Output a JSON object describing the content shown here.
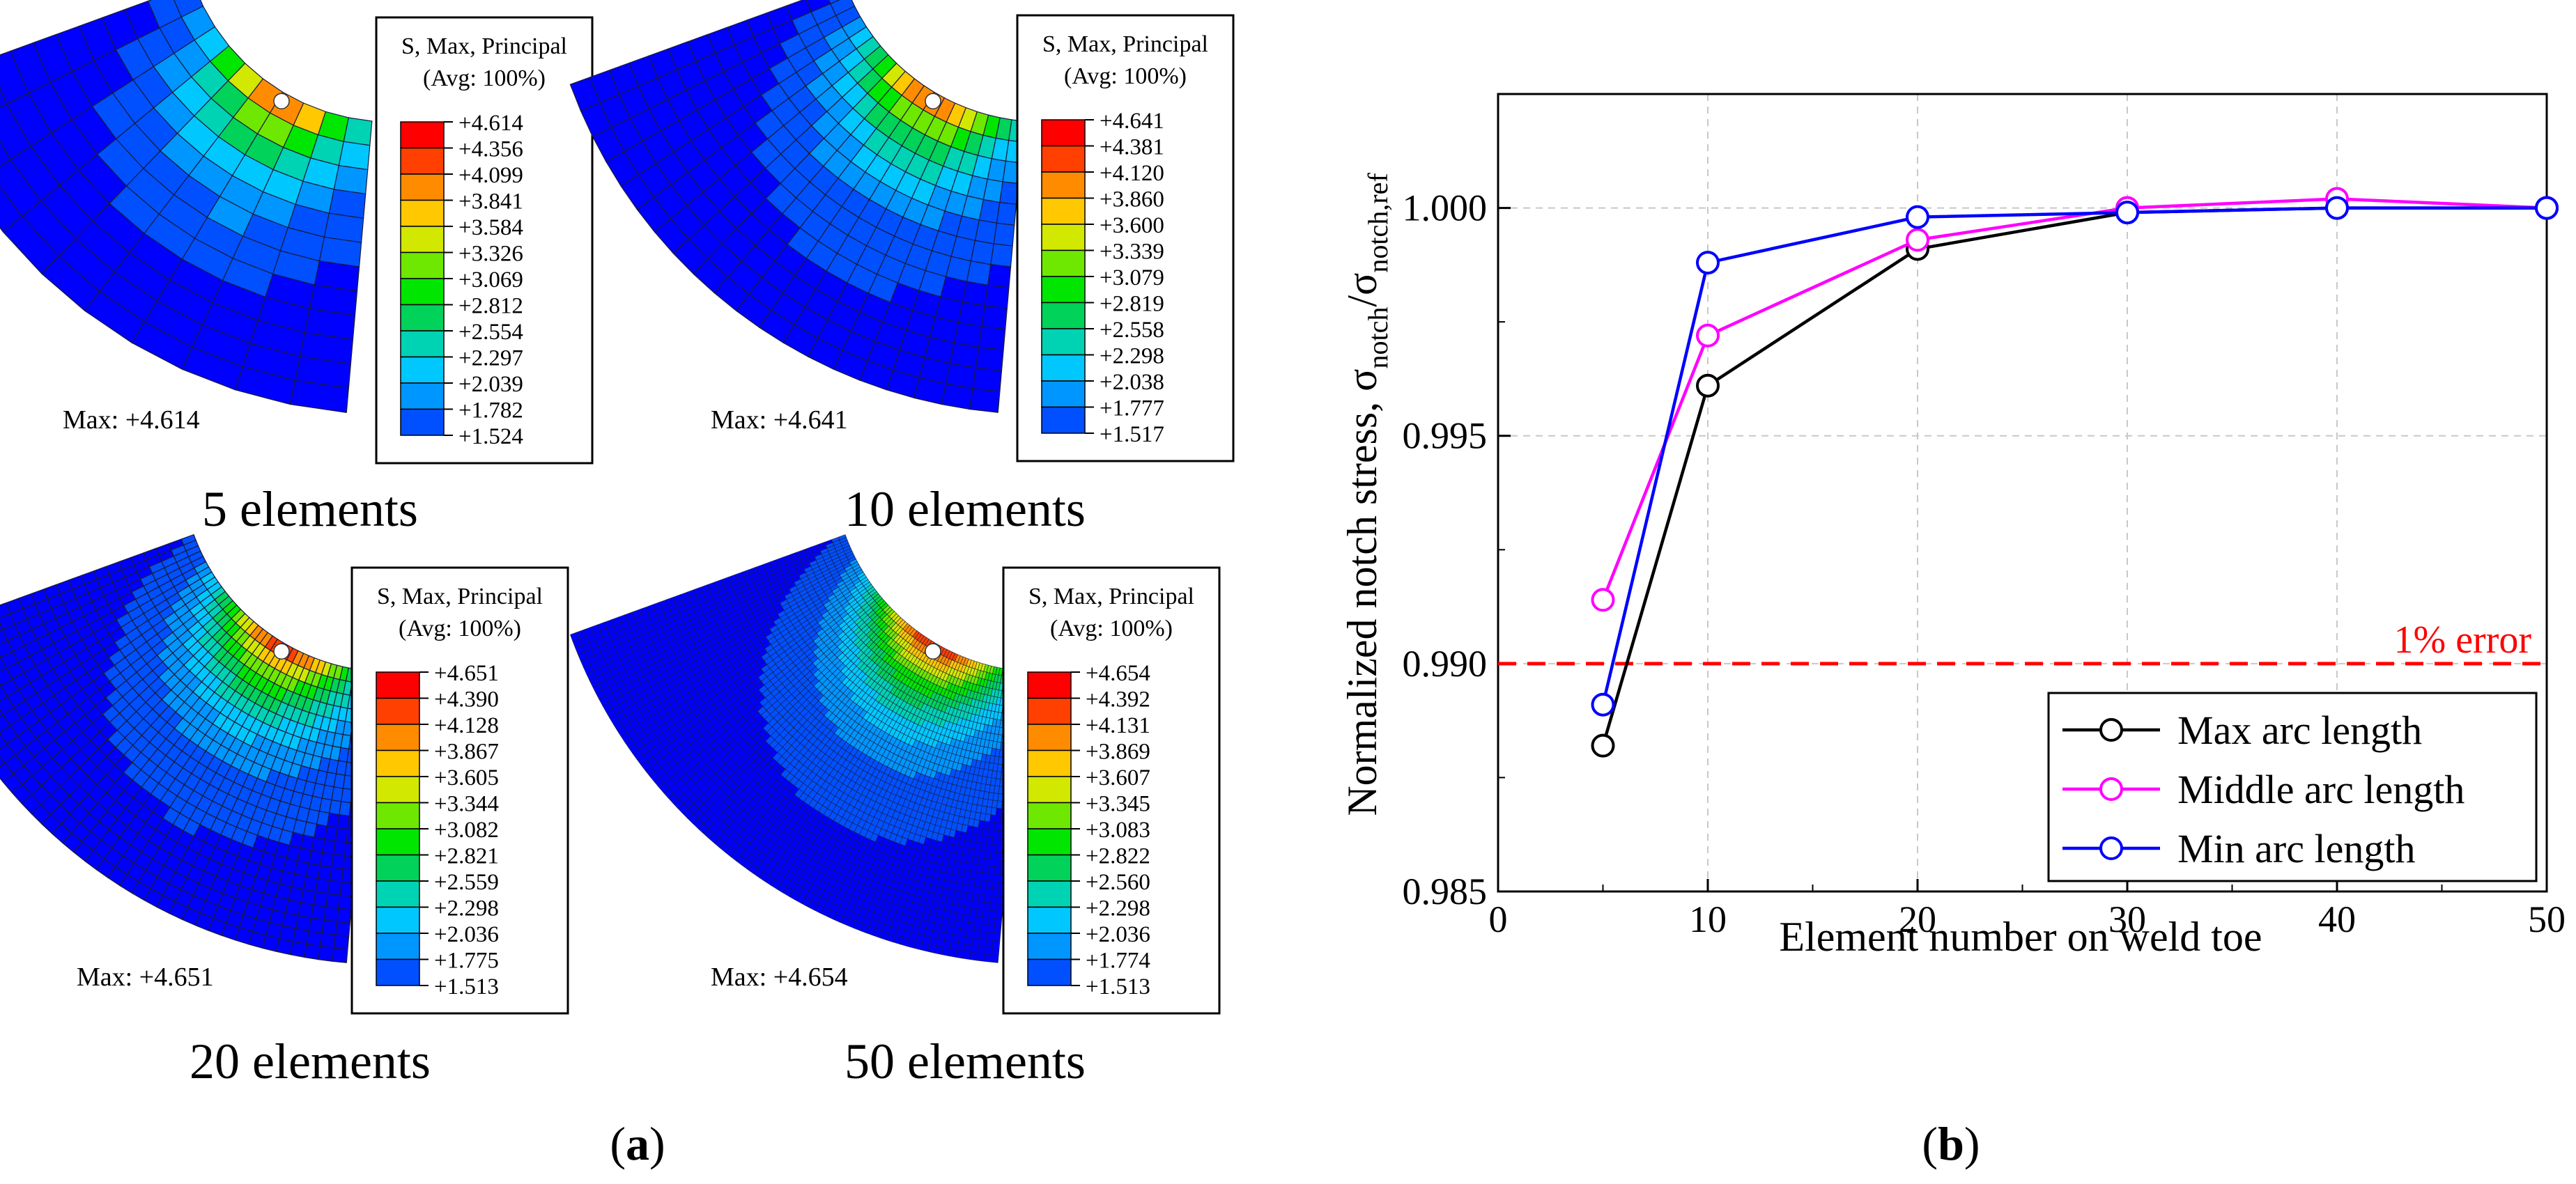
{
  "colors": {
    "fe_scale": [
      "#ff0000",
      "#ff4000",
      "#ff8c00",
      "#ffc800",
      "#d2e800",
      "#6ee800",
      "#00e600",
      "#00d25a",
      "#00d2b4",
      "#00c8ff",
      "#0096ff",
      "#0050ff",
      "#0000ff"
    ],
    "max_series": "#000000",
    "middle_series": "#ff00ff",
    "min_series": "#0000ff",
    "error_line": "#ff0000",
    "grid": "#c8c8c8"
  },
  "panel_a": {
    "caption_open": "(",
    "caption_letter": "a",
    "caption_close": ")",
    "contours": [
      {
        "legend_title_1": "S, Max, Principal",
        "legend_title_2": "(Avg: 100%)",
        "levels": [
          "+4.614",
          "+4.356",
          "+4.099",
          "+3.841",
          "+3.584",
          "+3.326",
          "+3.069",
          "+2.812",
          "+2.554",
          "+2.297",
          "+2.039",
          "+1.782",
          "+1.524"
        ],
        "max_text": "Max: +4.614",
        "label": "5 elements",
        "mesh_radial": 5,
        "mesh_layers": 12
      },
      {
        "legend_title_1": "S, Max, Principal",
        "legend_title_2": "(Avg: 100%)",
        "levels": [
          "+4.641",
          "+4.381",
          "+4.120",
          "+3.860",
          "+3.600",
          "+3.339",
          "+3.079",
          "+2.819",
          "+2.558",
          "+2.298",
          "+2.038",
          "+1.777",
          "+1.517"
        ],
        "max_text": "Max: +4.641",
        "label": "10 elements",
        "mesh_radial": 10,
        "mesh_layers": 14
      },
      {
        "legend_title_1": "S, Max, Principal",
        "legend_title_2": "(Avg: 100%)",
        "levels": [
          "+4.651",
          "+4.390",
          "+4.128",
          "+3.867",
          "+3.605",
          "+3.344",
          "+3.082",
          "+2.821",
          "+2.559",
          "+2.298",
          "+2.036",
          "+1.775",
          "+1.513"
        ],
        "max_text": "Max: +4.651",
        "label": "20 elements",
        "mesh_radial": 20,
        "mesh_layers": 22
      },
      {
        "legend_title_1": "S, Max, Principal",
        "legend_title_2": "(Avg: 100%)",
        "levels": [
          "+4.654",
          "+4.392",
          "+4.131",
          "+3.869",
          "+3.607",
          "+3.345",
          "+3.083",
          "+2.822",
          "+2.560",
          "+2.298",
          "+2.036",
          "+1.774",
          "+1.513"
        ],
        "max_text": "Max: +4.654",
        "label": "50 elements",
        "mesh_radial": 50,
        "mesh_layers": 40
      }
    ]
  },
  "chart_data": {
    "type": "line",
    "title": "",
    "xlabel": "Element number on weld toe",
    "ylabel_main": "Normalized notch stress, σ",
    "ylabel_sub1": "notch",
    "ylabel_slash": "/σ",
    "ylabel_sub2": "notch,ref",
    "xlim": [
      0,
      50
    ],
    "ylim": [
      0.985,
      1.0025
    ],
    "xticks": [
      0,
      10,
      20,
      30,
      40,
      50
    ],
    "xtick_labels": [
      "0",
      "10",
      "20",
      "30",
      "40",
      "50"
    ],
    "yticks": [
      0.985,
      0.99,
      0.995,
      1.0
    ],
    "ytick_labels": [
      "0.985",
      "0.990",
      "0.995",
      "1.000"
    ],
    "grid": true,
    "legend_position": "bottom-right",
    "x": [
      5,
      10,
      20,
      30,
      40,
      50
    ],
    "series": [
      {
        "name": "Max arc length",
        "color": "#000000",
        "values": [
          0.9882,
          0.9961,
          0.9991,
          0.9999,
          1.0,
          1.0
        ]
      },
      {
        "name": "Middle arc length",
        "color": "#ff00ff",
        "values": [
          0.9914,
          0.9972,
          0.9993,
          1.0,
          1.0002,
          1.0
        ]
      },
      {
        "name": "Min arc length",
        "color": "#0000ff",
        "values": [
          0.9891,
          0.9988,
          0.9998,
          0.9999,
          1.0,
          1.0
        ]
      }
    ],
    "reference_line": {
      "y": 0.99,
      "label": "1% error",
      "color": "#ff0000"
    },
    "caption_open": "(",
    "caption_letter": "b",
    "caption_close": ")"
  }
}
